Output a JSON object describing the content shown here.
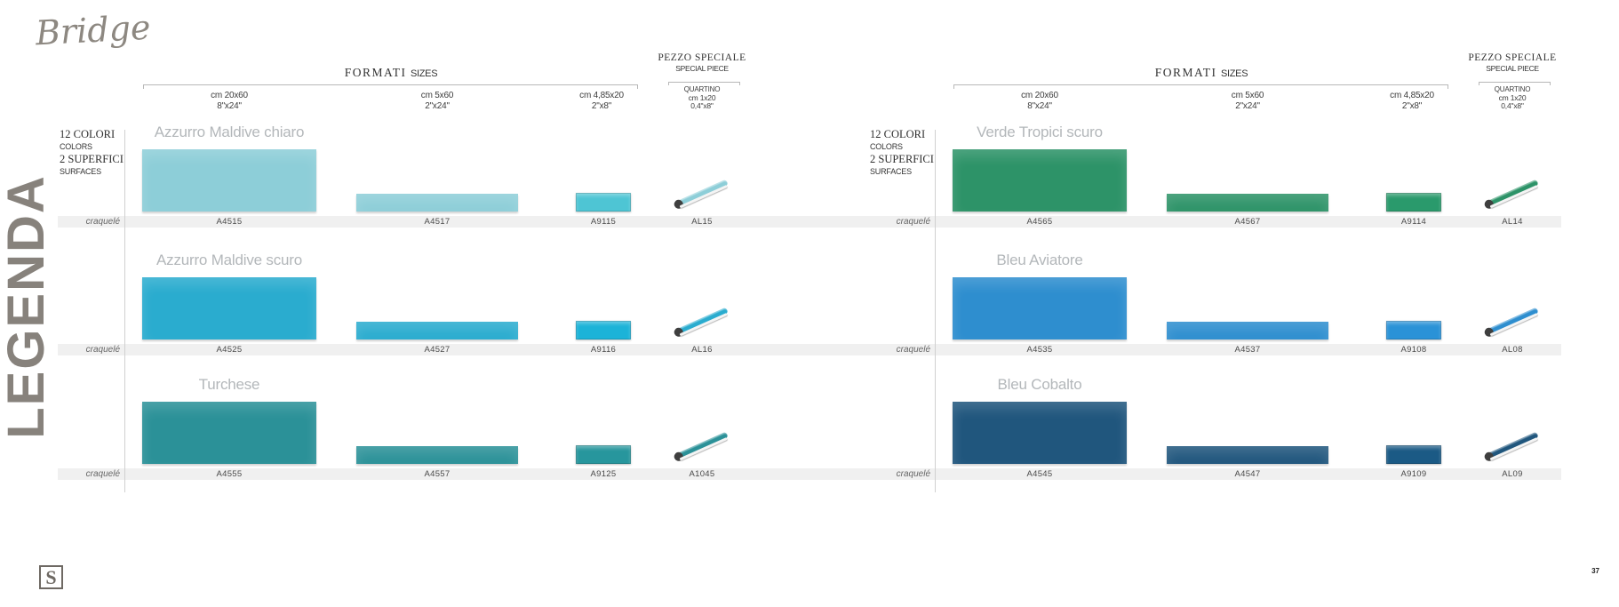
{
  "brand": {
    "collection": "Bridge",
    "side_label": "LEGENDA",
    "logo_letter": "S",
    "page_number": "37"
  },
  "headers": {
    "formati": "FORMATI",
    "sizes": "SIZES",
    "pezzo_line1": "PEZZO SPECIALE",
    "pezzo_line2": "SPECIAL PIECE",
    "quartino": "QUARTINO",
    "quartino_cm": "cm 1x20",
    "quartino_inch": "0,4\"x8\"",
    "col1_cm": "cm 20x60",
    "col1_inch": "8\"x24\"",
    "col2_cm": "cm 5x60",
    "col2_inch": "2\"x24\"",
    "col3_cm": "cm 4,85x20",
    "col3_inch": "2\"x8\""
  },
  "info": {
    "line1": "12 COLORI",
    "line2": "COLORS",
    "line3": "2 SUPERFICI",
    "line4": "SURFACES"
  },
  "surface_label": "craquelé",
  "left_panel": {
    "rows": [
      {
        "name": "Azzurro Maldive chiaro",
        "color": "#8dced8",
        "small_color": "#4ec5d4",
        "codes": [
          "A4515",
          "A4517",
          "A9115",
          "AL15"
        ]
      },
      {
        "name": "Azzurro Maldive scuro",
        "color": "#2aaccf",
        "small_color": "#1cb3d8",
        "codes": [
          "A4525",
          "A4527",
          "A9116",
          "AL16"
        ]
      },
      {
        "name": "Turchese",
        "color": "#2b9198",
        "small_color": "#27969d",
        "codes": [
          "A4555",
          "A4557",
          "A9125",
          "A1045"
        ]
      }
    ]
  },
  "right_panel": {
    "rows": [
      {
        "name": "Verde Tropici scuro",
        "color": "#2d9368",
        "small_color": "#2a9a6c",
        "codes": [
          "A4565",
          "A4567",
          "A9114",
          "AL14"
        ]
      },
      {
        "name": "Bleu Aviatore",
        "color": "#2e8ecf",
        "small_color": "#2a92d7",
        "codes": [
          "A4535",
          "A4537",
          "A9108",
          "AL08"
        ]
      },
      {
        "name": "Bleu Cobalto",
        "color": "#20567d",
        "small_color": "#1b5a85",
        "codes": [
          "A4545",
          "A4547",
          "A9109",
          "AL09"
        ]
      }
    ]
  }
}
